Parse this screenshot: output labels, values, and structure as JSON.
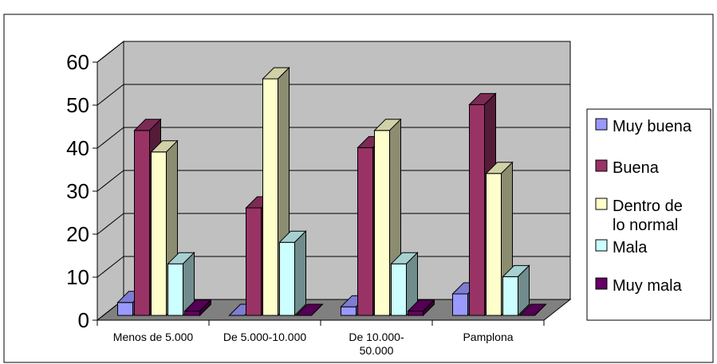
{
  "chart_data": {
    "type": "bar",
    "categories": [
      "Menos de 5.000",
      "De 5.000-10.000",
      "De 10.000-50.000",
      "Pamplona"
    ],
    "category_lines": [
      [
        "Menos de 5.000"
      ],
      [
        "De 5.000-10.000"
      ],
      [
        "De 10.000-",
        "50.000"
      ],
      [
        "Pamplona"
      ]
    ],
    "series": [
      {
        "name": "Muy buena",
        "values": [
          3,
          0,
          2,
          5
        ],
        "color": "#9999ff"
      },
      {
        "name": "Buena",
        "values": [
          43,
          25,
          39,
          49
        ],
        "color": "#993366"
      },
      {
        "name": "Dentro de lo normal",
        "values": [
          38,
          55,
          43,
          33
        ],
        "color": "#ffffcc"
      },
      {
        "name": "Mala",
        "values": [
          12,
          17,
          12,
          9
        ],
        "color": "#ccffff"
      },
      {
        "name": "Muy mala",
        "values": [
          1,
          0,
          1,
          0
        ],
        "color": "#660066"
      }
    ],
    "legend_lines": [
      [
        "Muy buena"
      ],
      [
        "Buena"
      ],
      [
        "Dentro de",
        "lo normal"
      ],
      [
        "Mala"
      ],
      [
        "Muy mala"
      ]
    ],
    "y_ticks": [
      "0",
      "10",
      "20",
      "30",
      "40",
      "50",
      "60"
    ],
    "ylim": [
      0,
      60
    ],
    "grid": true,
    "legend_position": "right",
    "wall_color": "#c0c0c0",
    "floor_color": "#808080"
  }
}
